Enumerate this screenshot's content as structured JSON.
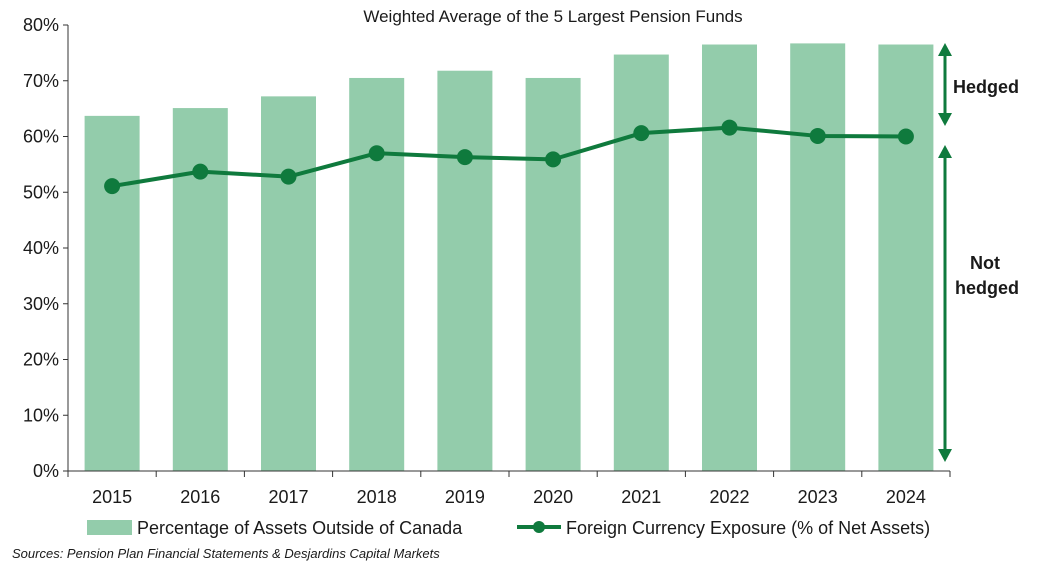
{
  "colors": {
    "bar": "#93ccab",
    "line": "#0f7a3d",
    "arrow": "#0f7a3d",
    "axis": "#333333"
  },
  "chart_data": {
    "type": "bar",
    "title": "Weighted Average of the 5 Largest Pension Funds",
    "categories": [
      "2015",
      "2016",
      "2017",
      "2018",
      "2019",
      "2020",
      "2021",
      "2022",
      "2023",
      "2024"
    ],
    "series": [
      {
        "name": "Percentage of Assets Outside of Canada",
        "type": "bar",
        "values": [
          63.7,
          65.1,
          67.2,
          70.5,
          71.8,
          70.5,
          74.7,
          76.5,
          76.7,
          76.5
        ]
      },
      {
        "name": "Foreign Currency Exposure (% of Net Assets)",
        "type": "line",
        "values": [
          51.1,
          53.7,
          52.8,
          57.0,
          56.3,
          55.9,
          60.6,
          61.6,
          60.1,
          60.0
        ]
      }
    ],
    "ylim": [
      0,
      80
    ],
    "yticks": [
      "0%",
      "10%",
      "20%",
      "30%",
      "40%",
      "50%",
      "60%",
      "70%",
      "80%"
    ],
    "legend_position": "bottom",
    "grid": false,
    "annotations": [
      "Hedged",
      "Not",
      "hedged"
    ]
  },
  "source_note": "Sources: Pension Plan Financial Statements & Desjardins Capital Markets"
}
